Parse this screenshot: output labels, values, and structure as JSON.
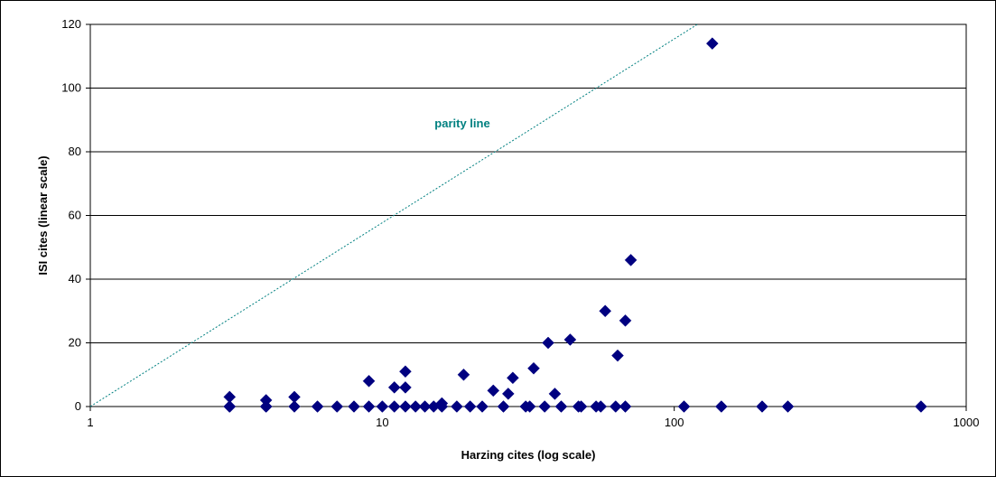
{
  "chart_data": {
    "type": "scatter",
    "title": "",
    "xlabel": "Harzing cites (log scale)",
    "ylabel": "ISI cites (linear scale)",
    "x_scale": "log",
    "xlim": [
      1,
      1000
    ],
    "ylim": [
      0,
      120
    ],
    "x_ticks": [
      "1",
      "10",
      "100",
      "1000"
    ],
    "y_ticks": [
      "0",
      "20",
      "40",
      "60",
      "80",
      "100",
      "120"
    ],
    "grid": "horizontal",
    "legend": "none",
    "marker_color": "#000080",
    "annotation": {
      "text": "parity line",
      "color": "#008080"
    },
    "parity_line": {
      "x": [
        1,
        120
      ],
      "y": [
        0,
        120
      ]
    },
    "points": [
      {
        "x": 3,
        "y": 3
      },
      {
        "x": 3,
        "y": 0
      },
      {
        "x": 3,
        "y": 0
      },
      {
        "x": 4,
        "y": 2
      },
      {
        "x": 4,
        "y": 0
      },
      {
        "x": 4,
        "y": 0
      },
      {
        "x": 5,
        "y": 3
      },
      {
        "x": 5,
        "y": 0
      },
      {
        "x": 5,
        "y": 0
      },
      {
        "x": 6,
        "y": 0
      },
      {
        "x": 7,
        "y": 0
      },
      {
        "x": 8,
        "y": 0
      },
      {
        "x": 9,
        "y": 8
      },
      {
        "x": 9,
        "y": 0
      },
      {
        "x": 10,
        "y": 0
      },
      {
        "x": 11,
        "y": 6
      },
      {
        "x": 11,
        "y": 0
      },
      {
        "x": 12,
        "y": 11
      },
      {
        "x": 12,
        "y": 6
      },
      {
        "x": 12,
        "y": 0
      },
      {
        "x": 13,
        "y": 0
      },
      {
        "x": 14,
        "y": 0
      },
      {
        "x": 15,
        "y": 0
      },
      {
        "x": 16,
        "y": 1
      },
      {
        "x": 16,
        "y": 0
      },
      {
        "x": 18,
        "y": 0
      },
      {
        "x": 19,
        "y": 10
      },
      {
        "x": 20,
        "y": 0
      },
      {
        "x": 22,
        "y": 0
      },
      {
        "x": 24,
        "y": 5
      },
      {
        "x": 26,
        "y": 0
      },
      {
        "x": 27,
        "y": 4
      },
      {
        "x": 28,
        "y": 9
      },
      {
        "x": 31,
        "y": 0
      },
      {
        "x": 32,
        "y": 0
      },
      {
        "x": 33,
        "y": 12
      },
      {
        "x": 36,
        "y": 0
      },
      {
        "x": 37,
        "y": 20
      },
      {
        "x": 39,
        "y": 4
      },
      {
        "x": 41,
        "y": 0
      },
      {
        "x": 44,
        "y": 21
      },
      {
        "x": 47,
        "y": 0
      },
      {
        "x": 48,
        "y": 0
      },
      {
        "x": 54,
        "y": 0
      },
      {
        "x": 56,
        "y": 0
      },
      {
        "x": 58,
        "y": 30
      },
      {
        "x": 63,
        "y": 0
      },
      {
        "x": 64,
        "y": 16
      },
      {
        "x": 68,
        "y": 27
      },
      {
        "x": 68,
        "y": 0
      },
      {
        "x": 71,
        "y": 46
      },
      {
        "x": 108,
        "y": 0
      },
      {
        "x": 135,
        "y": 114
      },
      {
        "x": 145,
        "y": 0
      },
      {
        "x": 200,
        "y": 0
      },
      {
        "x": 245,
        "y": 0
      },
      {
        "x": 700,
        "y": 0
      }
    ]
  }
}
